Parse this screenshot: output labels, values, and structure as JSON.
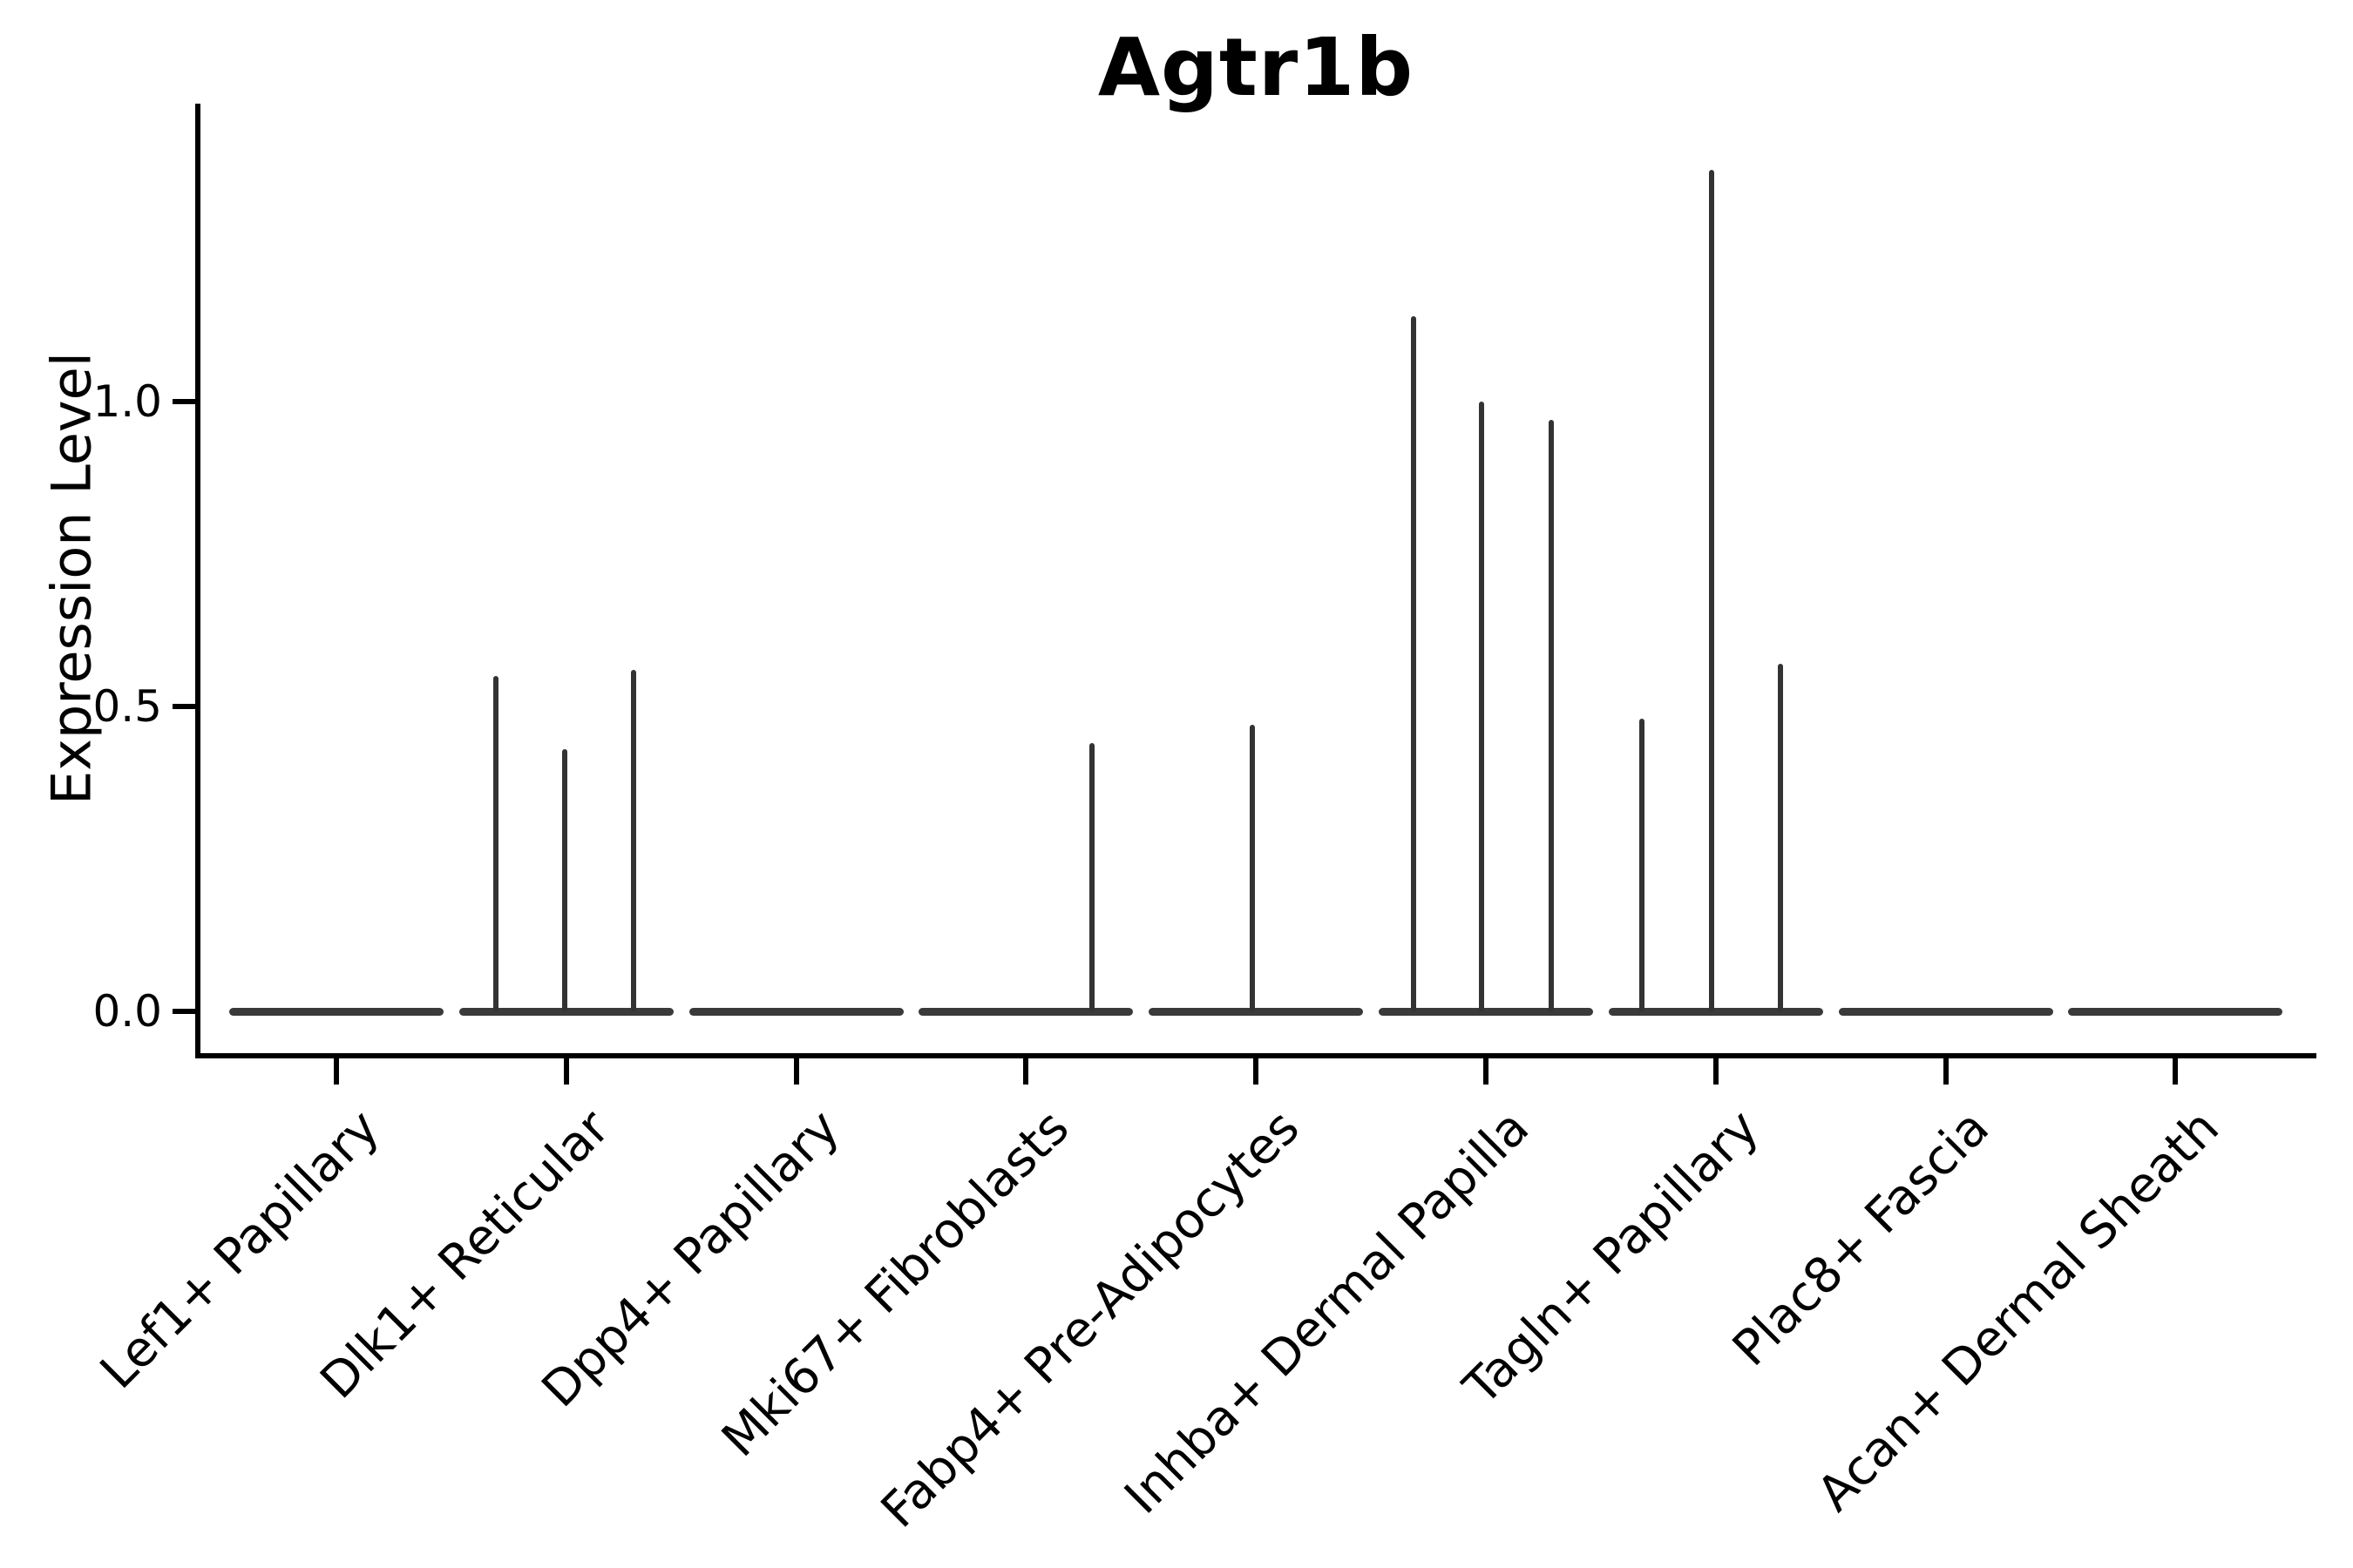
{
  "figure": {
    "title": "Agtr1b"
  },
  "chart_data": {
    "type": "violin",
    "title": "Agtr1b",
    "ylabel": "Expression Level",
    "xlabel": "",
    "ylim": [
      0,
      1.49
    ],
    "yticks": [
      {
        "value": 0.0,
        "label": "0.0"
      },
      {
        "value": 0.5,
        "label": "0.5"
      },
      {
        "value": 1.0,
        "label": "1.0"
      }
    ],
    "grid": false,
    "legend": "none",
    "categories": [
      {
        "label": "Lef1+ Papillary",
        "spikes": []
      },
      {
        "label": "Dlk1+ Reticular",
        "spikes": [
          {
            "dx": -81,
            "value": 0.55
          },
          {
            "dx": -2,
            "value": 0.43
          },
          {
            "dx": 77,
            "value": 0.56
          }
        ]
      },
      {
        "label": "Dpp4+ Papillary",
        "spikes": []
      },
      {
        "label": "Mki67+ Fibroblasts",
        "spikes": [
          {
            "dx": 76,
            "value": 0.44
          }
        ]
      },
      {
        "label": "Fabp4+ Pre-Adipocytes",
        "spikes": [
          {
            "dx": -4,
            "value": 0.47
          }
        ]
      },
      {
        "label": "Inhba+ Dermal Papilla",
        "spikes": [
          {
            "dx": -83,
            "value": 1.14
          },
          {
            "dx": -5,
            "value": 1.0
          },
          {
            "dx": 75,
            "value": 0.97
          }
        ]
      },
      {
        "label": "Tagln+ Papillary",
        "spikes": [
          {
            "dx": -85,
            "value": 0.48
          },
          {
            "dx": -5,
            "value": 1.38
          },
          {
            "dx": 74,
            "value": 0.57
          }
        ]
      },
      {
        "label": "Plac8+ Fascia",
        "spikes": []
      },
      {
        "label": "Acan+ Dermal Sheath",
        "spikes": []
      }
    ],
    "colors": {
      "violin": "#3a3a3a",
      "spike": "#333333",
      "axis": "#000000",
      "text": "#000000",
      "background": "#ffffff"
    }
  }
}
